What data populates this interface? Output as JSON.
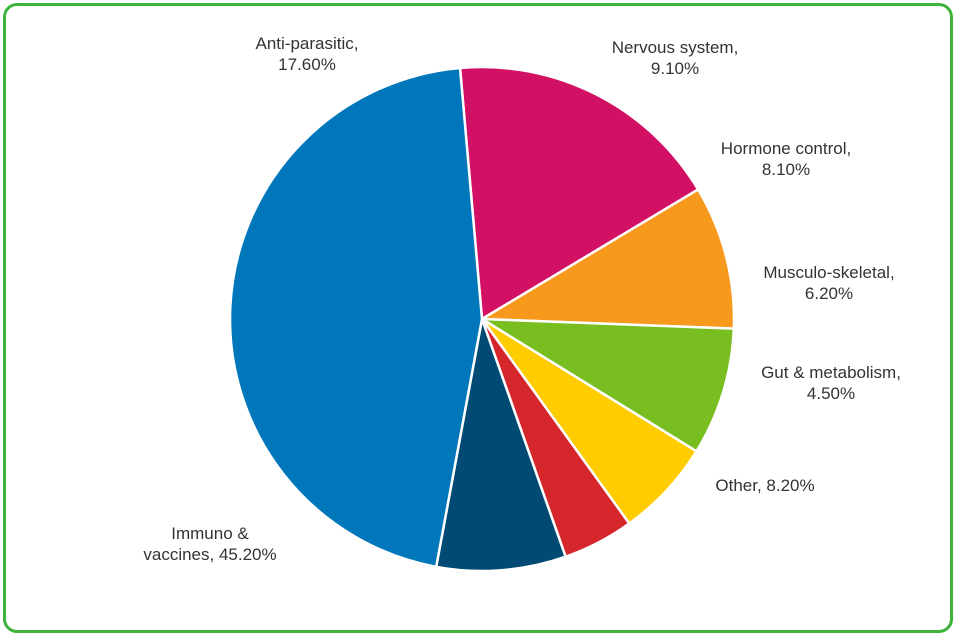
{
  "chart_data": {
    "type": "pie",
    "title": "",
    "border_color": "#3cb43c",
    "slices": [
      {
        "label_line1": "Anti-parasitic,",
        "label_line2": "17.60%",
        "value": 17.6,
        "color": "#d21064"
      },
      {
        "label_line1": "Nervous system,",
        "label_line2": "9.10%",
        "value": 9.1,
        "color": "#f7991c"
      },
      {
        "label_line1": "Hormone control,",
        "label_line2": "8.10%",
        "value": 8.1,
        "color": "#78be20"
      },
      {
        "label_line1": "Musculo-skeletal,",
        "label_line2": "6.20%",
        "value": 6.2,
        "color": "#ffcc00"
      },
      {
        "label_line1": "Gut & metabolism,",
        "label_line2": "4.50%",
        "value": 4.5,
        "color": "#d4262b"
      },
      {
        "label_line1": "Other, 8.20%",
        "label_line2": "",
        "value": 8.2,
        "color": "#004a73"
      },
      {
        "label_line1": "Immuno &",
        "label_line2": "vaccines, 45.20%",
        "value": 45.2,
        "color": "#0077bb"
      }
    ]
  }
}
